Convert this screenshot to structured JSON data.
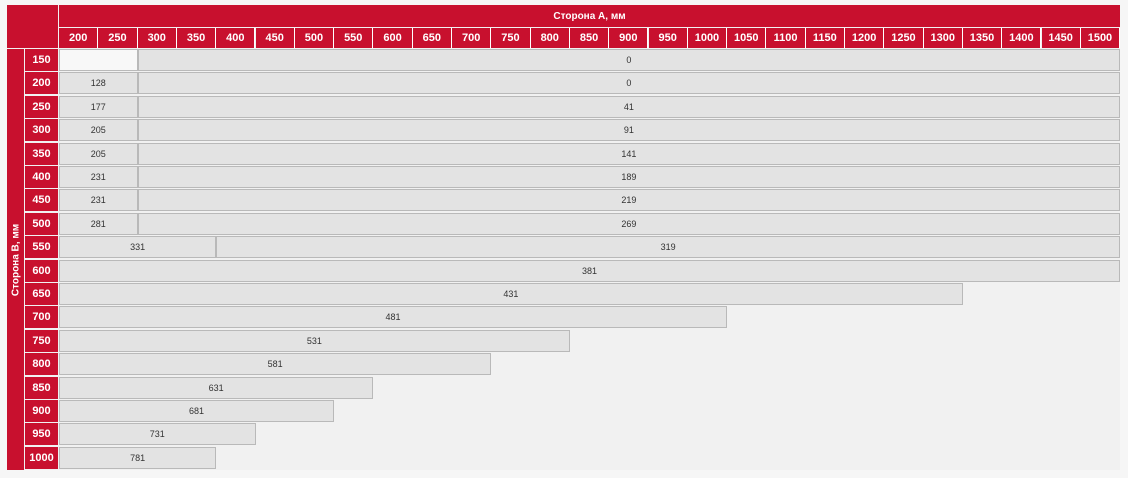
{
  "header": {
    "side_a_label": "Сторона А, мм",
    "side_b_label": "Сторона В, мм"
  },
  "columns": [
    "200",
    "250",
    "300",
    "350",
    "400",
    "450",
    "500",
    "550",
    "600",
    "650",
    "700",
    "750",
    "800",
    "850",
    "900",
    "950",
    "1000",
    "1050",
    "1100",
    "1150",
    "1200",
    "1250",
    "1300",
    "1350",
    "1400",
    "1450",
    "1500"
  ],
  "rows": [
    {
      "label": "150",
      "cells": [
        {
          "value": "",
          "span": 2,
          "tone": "white"
        },
        {
          "value": "0",
          "span": 25
        }
      ]
    },
    {
      "label": "200",
      "cells": [
        {
          "value": "128",
          "span": 2
        },
        {
          "value": "0",
          "span": 25
        }
      ]
    },
    {
      "label": "250",
      "cells": [
        {
          "value": "177",
          "span": 2
        },
        {
          "value": "41",
          "span": 25
        }
      ]
    },
    {
      "label": "300",
      "cells": [
        {
          "value": "205",
          "span": 2
        },
        {
          "value": "91",
          "span": 25
        }
      ]
    },
    {
      "label": "350",
      "cells": [
        {
          "value": "205",
          "span": 2
        },
        {
          "value": "141",
          "span": 25
        }
      ]
    },
    {
      "label": "400",
      "cells": [
        {
          "value": "231",
          "span": 2
        },
        {
          "value": "189",
          "span": 25
        }
      ]
    },
    {
      "label": "450",
      "cells": [
        {
          "value": "231",
          "span": 2
        },
        {
          "value": "219",
          "span": 25
        }
      ]
    },
    {
      "label": "500",
      "cells": [
        {
          "value": "281",
          "span": 2
        },
        {
          "value": "269",
          "span": 25
        }
      ]
    },
    {
      "label": "550",
      "cells": [
        {
          "value": "331",
          "span": 4
        },
        {
          "value": "319",
          "span": 23
        }
      ]
    },
    {
      "label": "600",
      "cells": [
        {
          "value": "381",
          "span": 27
        }
      ]
    },
    {
      "label": "650",
      "cells": [
        {
          "value": "431",
          "span": 23
        }
      ]
    },
    {
      "label": "700",
      "cells": [
        {
          "value": "481",
          "span": 17
        }
      ]
    },
    {
      "label": "750",
      "cells": [
        {
          "value": "531",
          "span": 13
        }
      ]
    },
    {
      "label": "800",
      "cells": [
        {
          "value": "581",
          "span": 11
        }
      ]
    },
    {
      "label": "850",
      "cells": [
        {
          "value": "631",
          "span": 8
        }
      ]
    },
    {
      "label": "900",
      "cells": [
        {
          "value": "681",
          "span": 7
        }
      ]
    },
    {
      "label": "950",
      "cells": [
        {
          "value": "731",
          "span": 5
        }
      ]
    },
    {
      "label": "1000",
      "cells": [
        {
          "value": "781",
          "span": 4
        }
      ]
    }
  ]
}
